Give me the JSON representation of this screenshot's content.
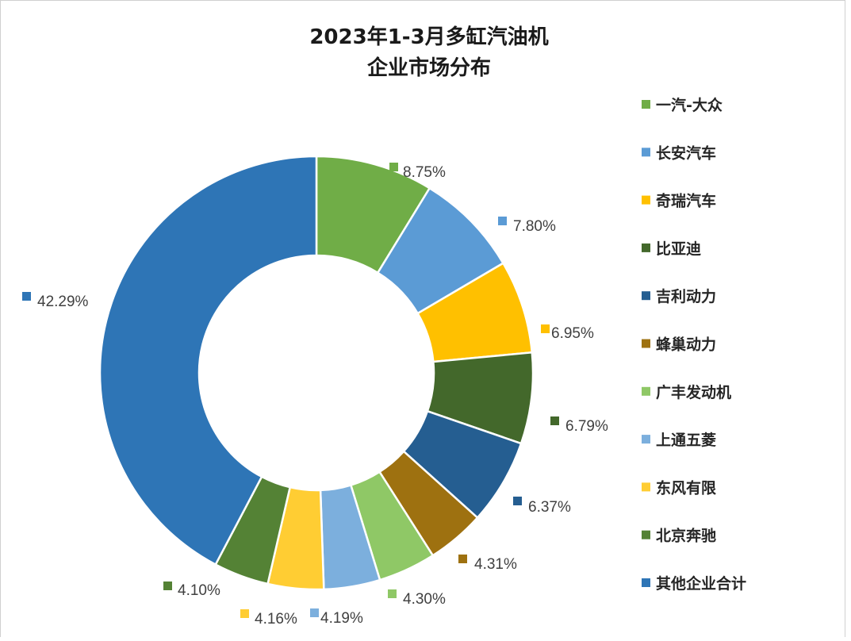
{
  "chart_data": {
    "type": "pie",
    "title": [
      "2023年1-3月多缸汽油机",
      "企业市场分布"
    ],
    "legend_position": "right",
    "slices": [
      {
        "name": "一汽-大众",
        "value": 8.75,
        "label": "8.75%",
        "color": "#70AD47"
      },
      {
        "name": "长安汽车",
        "value": 7.8,
        "label": "7.80%",
        "color": "#5B9BD5"
      },
      {
        "name": "奇瑞汽车",
        "value": 6.95,
        "label": "6.95%",
        "color": "#FFC000"
      },
      {
        "name": "比亚迪",
        "value": 6.79,
        "label": "6.79%",
        "color": "#43682B"
      },
      {
        "name": "吉利动力",
        "value": 6.37,
        "label": "6.37%",
        "color": "#255E91"
      },
      {
        "name": "蜂巢动力",
        "value": 4.31,
        "label": "4.31%",
        "color": "#9E7110"
      },
      {
        "name": "广丰发动机",
        "value": 4.3,
        "label": "4.30%",
        "color": "#8FC866"
      },
      {
        "name": "上通五菱",
        "value": 4.19,
        "label": "4.19%",
        "color": "#7CAFDD"
      },
      {
        "name": "东风有限",
        "value": 4.16,
        "label": "4.16%",
        "color": "#FFCD33"
      },
      {
        "name": "北京奔驰",
        "value": 4.1,
        "label": "4.10%",
        "color": "#548235"
      },
      {
        "name": "其他企业合计",
        "value": 42.29,
        "label": "42.29%",
        "color": "#2E75B6"
      }
    ]
  }
}
